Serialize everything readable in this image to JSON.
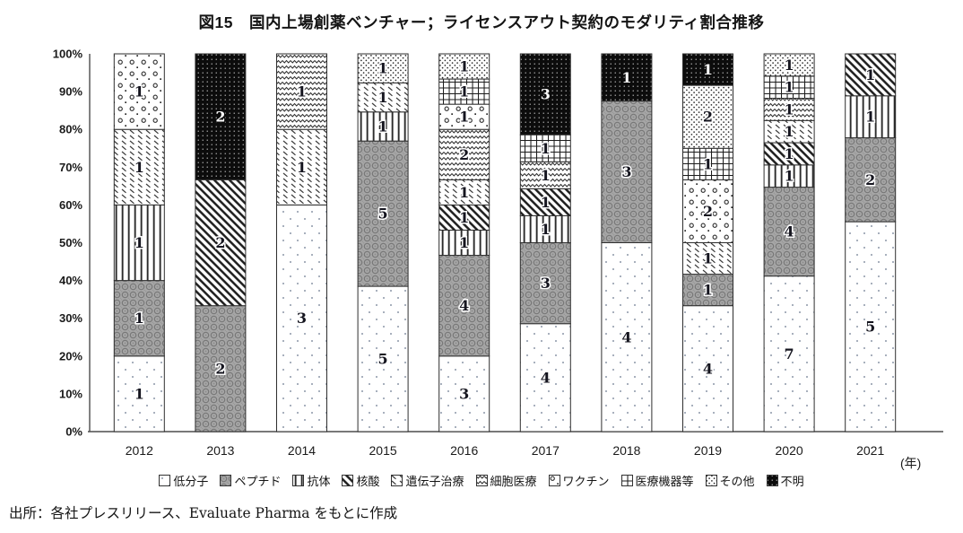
{
  "title": "図15　国内上場創薬ベンチャー；ライセンスアウト契約のモダリティ割合推移",
  "source": "出所：各社プレスリリース、Evaluate Pharma をもとに作成",
  "axis_unit_label": "(年)",
  "y_ticks": [
    "0%",
    "10%",
    "20%",
    "30%",
    "40%",
    "50%",
    "60%",
    "70%",
    "80%",
    "90%",
    "100%"
  ],
  "colors": {
    "ink": "#1a1a1a",
    "bar_border": "#2e2e2e",
    "axis": "#4d4d4d",
    "unknown_fill": "#0c0c0c",
    "peptide_gray": "#a6a6a6"
  },
  "chart_data": {
    "type": "bar",
    "stacked": true,
    "normalized": "percent",
    "title": "図15　国内上場創薬ベンチャー；ライセンスアウト契約のモダリティ割合推移",
    "xlabel": "(年)",
    "ylabel": "",
    "ylim": [
      0,
      100
    ],
    "grid": false,
    "legend_position": "bottom",
    "categories": [
      "2012",
      "2013",
      "2014",
      "2015",
      "2016",
      "2017",
      "2018",
      "2019",
      "2020",
      "2021"
    ],
    "series": [
      {
        "name": "低分子",
        "pattern": "dots-sparse",
        "values": [
          1,
          0,
          3,
          5,
          3,
          4,
          4,
          4,
          7,
          5
        ]
      },
      {
        "name": "ペプチド",
        "pattern": "gray-rings",
        "values": [
          1,
          2,
          0,
          5,
          4,
          3,
          3,
          1,
          4,
          2
        ]
      },
      {
        "name": "抗体",
        "pattern": "vertical-lines",
        "values": [
          1,
          0,
          0,
          1,
          1,
          1,
          0,
          0,
          1,
          1
        ]
      },
      {
        "name": "核酸",
        "pattern": "diagonal-dense",
        "values": [
          0,
          2,
          0,
          0,
          1,
          1,
          0,
          0,
          1,
          1
        ]
      },
      {
        "name": "遺伝子治療",
        "pattern": "diagonal-light",
        "values": [
          1,
          0,
          1,
          1,
          1,
          0,
          0,
          1,
          1,
          0
        ]
      },
      {
        "name": "細胞医療",
        "pattern": "zigzag",
        "values": [
          0,
          0,
          1,
          0,
          2,
          1,
          0,
          0,
          1,
          0
        ]
      },
      {
        "name": "ワクチン",
        "pattern": "circles-sparse",
        "values": [
          1,
          0,
          0,
          0,
          1,
          0,
          0,
          2,
          0,
          0
        ]
      },
      {
        "name": "医療機器等",
        "pattern": "grid",
        "values": [
          0,
          0,
          0,
          0,
          1,
          1,
          0,
          1,
          1,
          0
        ]
      },
      {
        "name": "その他",
        "pattern": "dots-dense",
        "values": [
          0,
          0,
          0,
          1,
          1,
          0,
          0,
          2,
          1,
          0
        ]
      },
      {
        "name": "不明",
        "pattern": "solid-black",
        "values": [
          0,
          2,
          0,
          0,
          0,
          3,
          1,
          1,
          0,
          0
        ]
      }
    ],
    "totals_per_year": [
      5,
      6,
      5,
      13,
      15,
      14,
      8,
      12,
      17,
      9
    ]
  }
}
